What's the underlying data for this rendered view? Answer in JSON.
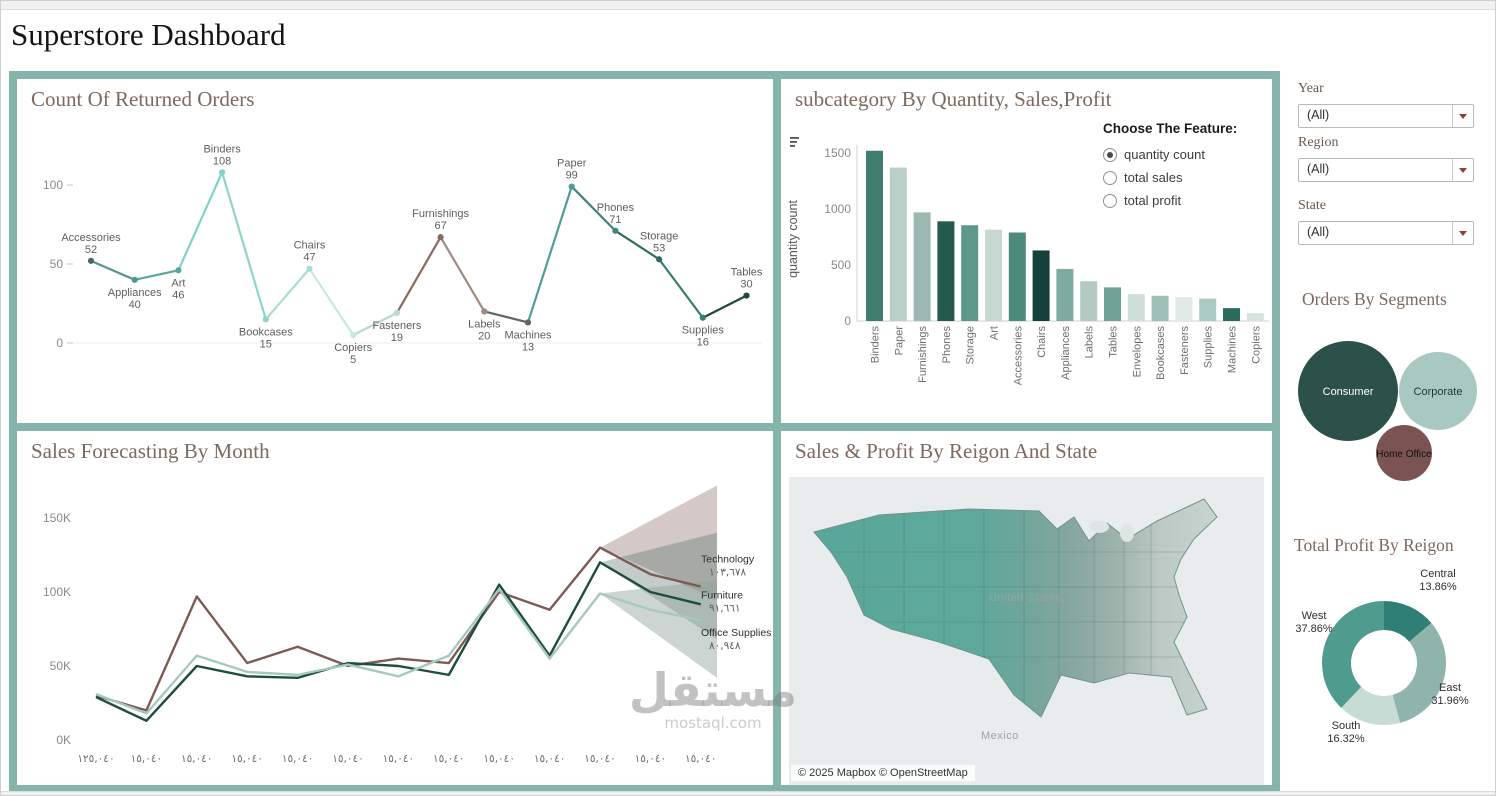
{
  "page": {
    "title": "Superstore Dashboard"
  },
  "panels": {
    "returned": {
      "title": "Count Of Returned Orders"
    },
    "subcategory": {
      "title": "subcategory By Quantity, Sales,Profit",
      "feature_label": "Choose The Feature:",
      "options": [
        {
          "label": "quantity count",
          "selected": true
        },
        {
          "label": "total sales",
          "selected": false
        },
        {
          "label": "total profit",
          "selected": false
        }
      ],
      "y_axis_label": "quantity count"
    },
    "forecast": {
      "title": "Sales Forecasting By Month"
    },
    "map": {
      "title": "Sales & Profit By Reigon And State",
      "country_label": "United States",
      "mexico_label": "Mexico",
      "attribution": "© 2025 Mapbox © OpenStreetMap"
    },
    "segments": {
      "title": "Orders By Segments"
    },
    "profit": {
      "title": "Total Profit By Reigon"
    }
  },
  "filters": [
    {
      "label": "Year",
      "value": "(All)"
    },
    {
      "label": "Region",
      "value": "(All)"
    },
    {
      "label": "State",
      "value": "(All)"
    }
  ],
  "watermark": {
    "line1": "مستقل",
    "line2": "mostaql.com"
  },
  "chart_data": [
    {
      "id": "returned_orders",
      "type": "line",
      "title": "Count Of Returned Orders",
      "categories": [
        "Accessories",
        "Appliances",
        "Art",
        "Binders",
        "Bookcases",
        "Chairs",
        "Copiers",
        "Fasteners",
        "Furnishings",
        "Labels",
        "Machines",
        "Paper",
        "Phones",
        "Storage",
        "Supplies",
        "Tables"
      ],
      "values": [
        52,
        40,
        46,
        108,
        15,
        47,
        5,
        19,
        67,
        20,
        13,
        99,
        71,
        53,
        16,
        30
      ],
      "point_colors": [
        "#51626a",
        "#4f968c",
        "#59a89b",
        "#7fd2c8",
        "#8ed4ca",
        "#a5ded6",
        "#c5e9e3",
        "#b7d9d2",
        "#8a6a5f",
        "#a08b82",
        "#5f6563",
        "#4f9e93",
        "#41867b",
        "#2f6e63",
        "#3a7d71",
        "#20473d"
      ],
      "label_positions": [
        "above",
        "below",
        "below",
        "above",
        "below",
        "above",
        "below",
        "below",
        "above",
        "below",
        "below",
        "above",
        "above",
        "above",
        "below",
        "above"
      ],
      "yticks": [
        0,
        50,
        100
      ],
      "ylim": [
        0,
        120
      ]
    },
    {
      "id": "subcategory_quantity",
      "type": "bar",
      "title": "subcategory By Quantity, Sales,Profit",
      "ylabel": "quantity count",
      "categories": [
        "Binders",
        "Paper",
        "Furnishings",
        "Phones",
        "Storage",
        "Art",
        "Accessories",
        "Chairs",
        "Appliances",
        "Labels",
        "Tables",
        "Envelopes",
        "Bookcases",
        "Fasteners",
        "Supplies",
        "Machines",
        "Copiers"
      ],
      "values": [
        1520,
        1370,
        970,
        890,
        855,
        815,
        790,
        630,
        465,
        355,
        300,
        240,
        225,
        215,
        200,
        115,
        70
      ],
      "bar_colors": [
        "#3f7d70",
        "#b9cfc7",
        "#9bb9b0",
        "#235a4c",
        "#5d988c",
        "#c6d8d1",
        "#4c8a7c",
        "#16413a",
        "#7fab9f",
        "#b3c9c1",
        "#6fa193",
        "#cfdfda",
        "#9fbeb5",
        "#e0ebe7",
        "#abcac1",
        "#2c6b5c",
        "#d5e4df"
      ],
      "yticks": [
        0,
        500,
        1000,
        1500
      ],
      "ylim": [
        0,
        1600
      ]
    },
    {
      "id": "sales_forecast",
      "type": "line",
      "title": "Sales Forecasting By Month",
      "x_labels": [
        "١٢٥,٠٤٠",
        "١٥,٠٤٠",
        "١٥,٠٤٠",
        "١٥,٠٤٠",
        "١٥,٠٤٠",
        "١٥,٠٤٠",
        "١٥,٠٤٠",
        "١٥,٠٤٠",
        "١٥,٠٤٠",
        "١٥,٠٤٠",
        "١٥,٠٤٠",
        "١٥,٠٤٠",
        "١٥,٠٤٠"
      ],
      "yticks_labels": [
        "0K",
        "50K",
        "100K",
        "150K"
      ],
      "yticks_values": [
        0,
        50,
        100,
        150
      ],
      "ylim": [
        0,
        175
      ],
      "forecast_start_index": 10,
      "series": [
        {
          "name": "Technology",
          "color": "#7d5a54",
          "values": [
            30,
            20,
            97,
            52,
            63,
            50,
            55,
            52,
            100,
            88,
            130,
            112,
            103.678
          ],
          "annotation": "١٠٣,٦٧٨"
        },
        {
          "name": "Furniture",
          "color": "#1d4d40",
          "values": [
            29,
            13,
            50,
            43,
            42,
            52,
            50,
            44,
            105,
            57,
            120,
            100,
            91.661
          ],
          "annotation": "٩١,٦٦١"
        },
        {
          "name": "Office Supplies",
          "color": "#a7c8bf",
          "values": [
            31,
            18,
            57,
            46,
            44,
            51,
            43,
            57,
            102,
            55,
            99,
            88,
            80.948
          ],
          "annotation": "٨٠,٩٤٨"
        }
      ],
      "bands": [
        {
          "series": "Technology",
          "top": 172,
          "bottom": 95,
          "color": "rgba(141,113,105,0.38)"
        },
        {
          "series": "Furniture",
          "top": 140,
          "bottom": 68,
          "color": "rgba(84,110,101,0.35)"
        },
        {
          "series": "Office Supplies",
          "top": 108,
          "bottom": 42,
          "color": "rgba(145,162,156,0.45)"
        }
      ]
    },
    {
      "id": "orders_by_segments",
      "type": "bubble",
      "title": "Orders By Segments",
      "bubbles": [
        {
          "label": "Consumer",
          "color": "#2b5148",
          "text_color": "#ffffff",
          "cx": 58,
          "cy": 72,
          "r": 50
        },
        {
          "label": "Corporate",
          "color": "#a9c9c0",
          "text_color": "#203a33",
          "cx": 148,
          "cy": 72,
          "r": 39
        },
        {
          "label": "Home Office",
          "color": "#7c5353",
          "text_color": "#111111",
          "cx": 114,
          "cy": 134,
          "r": 28
        }
      ]
    },
    {
      "id": "total_profit_by_region",
      "type": "pie",
      "donut": true,
      "title": "Total Profit By Reigon",
      "slices": [
        {
          "label": "Central",
          "pct": 13.86,
          "pct_label": "13.86%",
          "color": "#2f7f75"
        },
        {
          "label": "East",
          "pct": 31.96,
          "pct_label": "31.96%",
          "color": "#8fb4ab"
        },
        {
          "label": "South",
          "pct": 16.32,
          "pct_label": "16.32%",
          "color": "#c6dcd5"
        },
        {
          "label": "West",
          "pct": 37.86,
          "pct_label": "37.86%",
          "color": "#4f9c8f"
        }
      ]
    }
  ]
}
